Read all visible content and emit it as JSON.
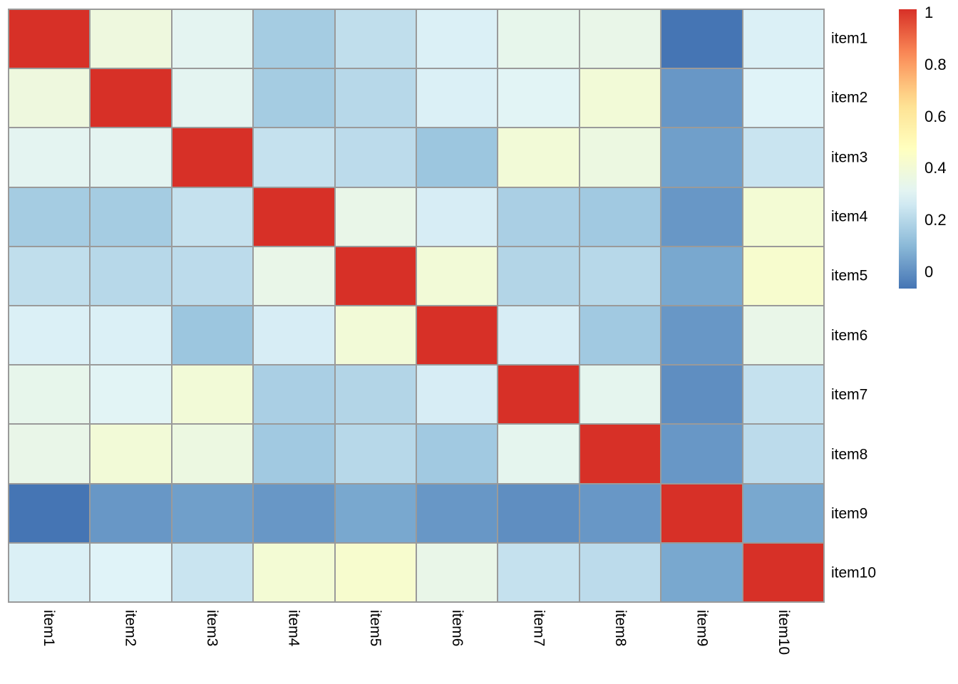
{
  "chart_data": {
    "type": "heatmap",
    "title": "",
    "xlabel": "",
    "ylabel": "",
    "row_labels": [
      "item1",
      "item2",
      "item3",
      "item4",
      "item5",
      "item6",
      "item7",
      "item8",
      "item9",
      "item10"
    ],
    "col_labels": [
      "item1",
      "item2",
      "item3",
      "item4",
      "item5",
      "item6",
      "item7",
      "item8",
      "item9",
      "item10"
    ],
    "matrix": [
      [
        1.0,
        0.38,
        0.32,
        0.17,
        0.23,
        0.29,
        0.34,
        0.35,
        -0.05,
        0.29
      ],
      [
        0.38,
        1.0,
        0.32,
        0.17,
        0.21,
        0.29,
        0.31,
        0.4,
        0.03,
        0.3
      ],
      [
        0.32,
        0.32,
        1.0,
        0.24,
        0.22,
        0.15,
        0.4,
        0.37,
        0.05,
        0.25
      ],
      [
        0.17,
        0.17,
        0.24,
        1.0,
        0.35,
        0.28,
        0.18,
        0.16,
        0.03,
        0.41
      ],
      [
        0.23,
        0.21,
        0.22,
        0.35,
        1.0,
        0.4,
        0.2,
        0.21,
        0.07,
        0.43
      ],
      [
        0.29,
        0.29,
        0.15,
        0.28,
        0.4,
        1.0,
        0.28,
        0.16,
        0.03,
        0.35
      ],
      [
        0.34,
        0.31,
        0.4,
        0.18,
        0.2,
        0.28,
        1.0,
        0.33,
        0.01,
        0.24
      ],
      [
        0.35,
        0.4,
        0.37,
        0.16,
        0.21,
        0.16,
        0.33,
        1.0,
        0.03,
        0.22
      ],
      [
        -0.05,
        0.03,
        0.05,
        0.03,
        0.07,
        0.03,
        0.01,
        0.03,
        1.0,
        0.07
      ],
      [
        0.29,
        0.3,
        0.25,
        0.41,
        0.43,
        0.35,
        0.24,
        0.22,
        0.07,
        1.0
      ]
    ],
    "vmin": -0.05,
    "vmax": 1.0,
    "colormap": {
      "name": "RdYlBu-reversed",
      "anchors": [
        "#4575b4",
        "#91bfdb",
        "#e0f3f8",
        "#ffffbf",
        "#fee090",
        "#fc8d59",
        "#d73027"
      ]
    },
    "grid_line_color": "#9a9a9a",
    "background_color": "#ffffff",
    "legend": {
      "position": "right",
      "ticks": [
        {
          "label": "1",
          "value": 1.0
        },
        {
          "label": "0.8",
          "value": 0.8
        },
        {
          "label": "0.6",
          "value": 0.6
        },
        {
          "label": "0.4",
          "value": 0.4
        },
        {
          "label": "0.2",
          "value": 0.2
        },
        {
          "label": "0",
          "value": 0.0
        }
      ]
    }
  }
}
